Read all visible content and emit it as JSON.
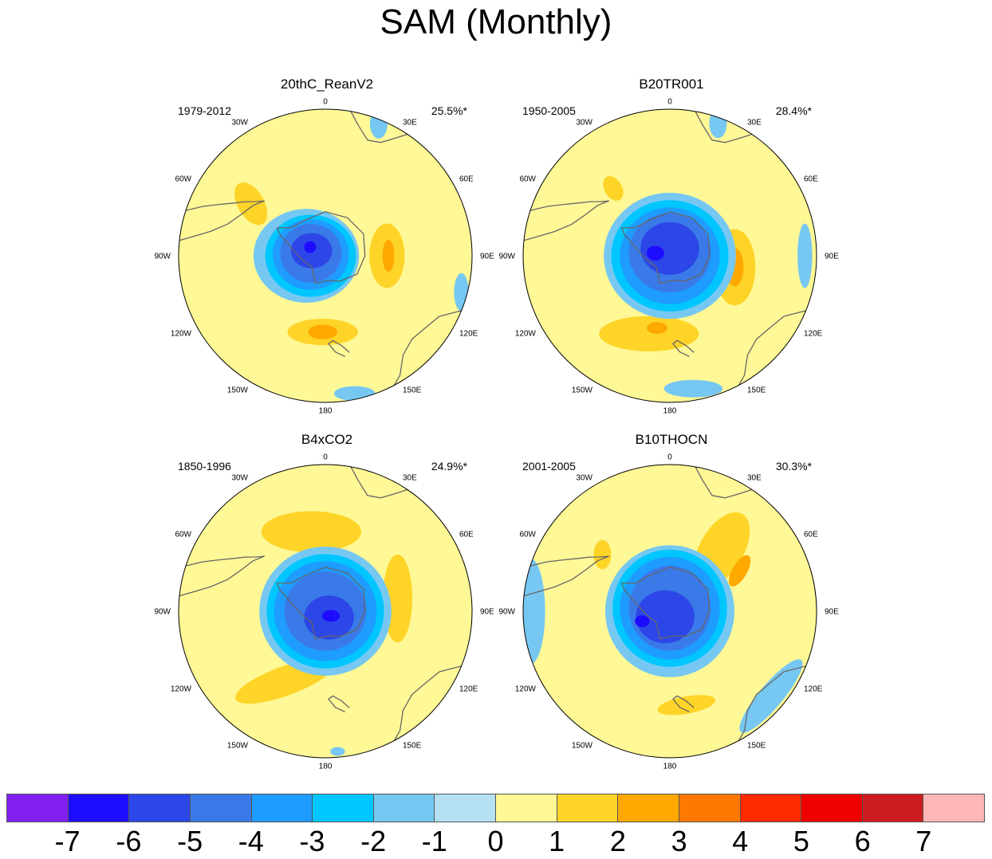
{
  "title": "SAM (Monthly)",
  "panels": [
    {
      "name": "20thC_ReanV2",
      "years": "1979-2012",
      "variance": "25.5%*",
      "features": [
        {
          "lon": 305,
          "r": 0.62,
          "a": 0.16,
          "b": 0.09,
          "rot": 60,
          "c": 1
        },
        {
          "lon": 90,
          "r": 0.42,
          "a": 0.12,
          "b": 0.22,
          "rot": 0,
          "c": 1
        },
        {
          "lon": 90,
          "r": 0.43,
          "a": 0.04,
          "b": 0.11,
          "rot": 0,
          "c": 2
        },
        {
          "lon": 182,
          "r": 0.52,
          "a": 0.24,
          "b": 0.09,
          "rot": 0,
          "c": 1
        },
        {
          "lon": 182,
          "r": 0.52,
          "a": 0.1,
          "b": 0.05,
          "rot": 0,
          "c": 2
        },
        {
          "lon": 22,
          "r": 0.97,
          "a": 0.06,
          "b": 0.1,
          "rot": 0,
          "c": -1
        },
        {
          "lon": 105,
          "r": 0.96,
          "a": 0.05,
          "b": 0.13,
          "rot": 0,
          "c": -1
        },
        {
          "lon": 168,
          "r": 0.96,
          "a": 0.14,
          "b": 0.05,
          "rot": 0,
          "c": -1
        },
        {
          "lon": 270,
          "r": 0.13,
          "a": 0.36,
          "b": 0.32,
          "rot": 0,
          "c": -1
        },
        {
          "lon": 270,
          "r": 0.1,
          "a": 0.31,
          "b": 0.28,
          "rot": 0,
          "c": -2
        },
        {
          "lon": 275,
          "r": 0.1,
          "a": 0.26,
          "b": 0.24,
          "rot": 0,
          "c": -3
        },
        {
          "lon": 280,
          "r": 0.1,
          "a": 0.21,
          "b": 0.2,
          "rot": 0,
          "c": -4
        },
        {
          "lon": 290,
          "r": 0.1,
          "a": 0.14,
          "b": 0.12,
          "rot": 0,
          "c": -5
        },
        {
          "lon": 300,
          "r": 0.12,
          "a": 0.04,
          "b": 0.04,
          "rot": 0,
          "c": -6
        }
      ]
    },
    {
      "name": "B20TR001",
      "years": "1950-2005",
      "variance": "28.4%*",
      "features": [
        {
          "lon": 320,
          "r": 0.6,
          "a": 0.09,
          "b": 0.06,
          "rot": 60,
          "c": 1
        },
        {
          "lon": 100,
          "r": 0.45,
          "a": 0.14,
          "b": 0.26,
          "rot": 0,
          "c": 1
        },
        {
          "lon": 100,
          "r": 0.45,
          "a": 0.06,
          "b": 0.13,
          "rot": 0,
          "c": 2
        },
        {
          "lon": 195,
          "r": 0.55,
          "a": 0.34,
          "b": 0.12,
          "rot": 0,
          "c": 1
        },
        {
          "lon": 190,
          "r": 0.5,
          "a": 0.07,
          "b": 0.04,
          "rot": 0,
          "c": 2
        },
        {
          "lon": 20,
          "r": 0.96,
          "a": 0.06,
          "b": 0.1,
          "rot": 0,
          "c": -1
        },
        {
          "lon": 90,
          "r": 0.92,
          "a": 0.05,
          "b": 0.22,
          "rot": 0,
          "c": -1
        },
        {
          "lon": 170,
          "r": 0.92,
          "a": 0.2,
          "b": 0.06,
          "rot": 0,
          "c": -1
        },
        {
          "lon": 0,
          "r": 0.0,
          "a": 0.45,
          "b": 0.43,
          "rot": 0,
          "c": -1
        },
        {
          "lon": 0,
          "r": 0.0,
          "a": 0.4,
          "b": 0.38,
          "rot": 0,
          "c": -2
        },
        {
          "lon": 0,
          "r": 0.0,
          "a": 0.34,
          "b": 0.33,
          "rot": 0,
          "c": -3
        },
        {
          "lon": 0,
          "r": 0.02,
          "a": 0.28,
          "b": 0.27,
          "rot": 0,
          "c": -4
        },
        {
          "lon": 0,
          "r": 0.05,
          "a": 0.2,
          "b": 0.18,
          "rot": 0,
          "c": -5
        },
        {
          "lon": 280,
          "r": 0.1,
          "a": 0.06,
          "b": 0.05,
          "rot": 0,
          "c": -6
        }
      ]
    },
    {
      "name": "B4xCO2",
      "years": "1850-1996",
      "variance": "24.9%*",
      "features": [
        {
          "lon": 350,
          "r": 0.55,
          "a": 0.34,
          "b": 0.14,
          "rot": 0,
          "c": 1
        },
        {
          "lon": 80,
          "r": 0.5,
          "a": 0.1,
          "b": 0.3,
          "rot": 0,
          "c": 1
        },
        {
          "lon": 210,
          "r": 0.55,
          "a": 0.36,
          "b": 0.1,
          "rot": -20,
          "c": 1
        },
        {
          "lon": 175,
          "r": 0.96,
          "a": 0.05,
          "b": 0.03,
          "rot": 0,
          "c": -1
        },
        {
          "lon": 0,
          "r": 0.0,
          "a": 0.45,
          "b": 0.44,
          "rot": 0,
          "c": -1
        },
        {
          "lon": 0,
          "r": 0.0,
          "a": 0.4,
          "b": 0.39,
          "rot": 0,
          "c": -2
        },
        {
          "lon": 0,
          "r": 0.0,
          "a": 0.35,
          "b": 0.34,
          "rot": 0,
          "c": -3
        },
        {
          "lon": 0,
          "r": 0.0,
          "a": 0.28,
          "b": 0.27,
          "rot": 0,
          "c": -4
        },
        {
          "lon": 150,
          "r": 0.05,
          "a": 0.17,
          "b": 0.15,
          "rot": 0,
          "c": -5
        },
        {
          "lon": 130,
          "r": 0.05,
          "a": 0.06,
          "b": 0.04,
          "rot": 0,
          "c": -6
        }
      ]
    },
    {
      "name": "B10THOCN",
      "years": "2001-2005",
      "variance": "30.3%*",
      "features": [
        {
          "lon": 310,
          "r": 0.6,
          "a": 0.06,
          "b": 0.1,
          "rot": 0,
          "c": 1
        },
        {
          "lon": 40,
          "r": 0.55,
          "a": 0.15,
          "b": 0.28,
          "rot": 30,
          "c": 1
        },
        {
          "lon": 60,
          "r": 0.55,
          "a": 0.05,
          "b": 0.12,
          "rot": 30,
          "c": 2
        },
        {
          "lon": 170,
          "r": 0.65,
          "a": 0.2,
          "b": 0.06,
          "rot": -10,
          "c": 1
        },
        {
          "lon": 270,
          "r": 0.95,
          "a": 0.1,
          "b": 0.36,
          "rot": 0,
          "c": -1
        },
        {
          "lon": 130,
          "r": 0.9,
          "a": 0.08,
          "b": 0.32,
          "rot": 40,
          "c": -1
        },
        {
          "lon": 0,
          "r": 0.0,
          "a": 0.44,
          "b": 0.45,
          "rot": 0,
          "c": -1
        },
        {
          "lon": 0,
          "r": 0.02,
          "a": 0.39,
          "b": 0.4,
          "rot": 0,
          "c": -2
        },
        {
          "lon": 0,
          "r": 0.02,
          "a": 0.34,
          "b": 0.35,
          "rot": 0,
          "c": -3
        },
        {
          "lon": 0,
          "r": 0.02,
          "a": 0.28,
          "b": 0.29,
          "rot": 0,
          "c": -4
        },
        {
          "lon": 220,
          "r": 0.05,
          "a": 0.2,
          "b": 0.18,
          "rot": 0,
          "c": -5
        },
        {
          "lon": 250,
          "r": 0.2,
          "a": 0.05,
          "b": 0.04,
          "rot": 0,
          "c": -6
        }
      ]
    }
  ],
  "lon_labels": [
    "0",
    "30E",
    "60E",
    "90E",
    "120E",
    "150E",
    "180",
    "150W",
    "120W",
    "90W",
    "60W",
    "30W"
  ],
  "colorbar": {
    "labels": [
      "-7",
      "-6",
      "-5",
      "-4",
      "-3",
      "-2",
      "-1",
      "0",
      "1",
      "2",
      "3",
      "4",
      "5",
      "6",
      "7"
    ],
    "colors": [
      "#8120f0",
      "#1e0cff",
      "#2c46e8",
      "#3a7ae8",
      "#1e9cff",
      "#00c6ff",
      "#76c8f2",
      "#b4e0f2",
      "#fff896",
      "#ffd428",
      "#ffa800",
      "#ff7800",
      "#ff2a00",
      "#ee0000",
      "#cc1c20",
      "#ffb6b6"
    ]
  }
}
